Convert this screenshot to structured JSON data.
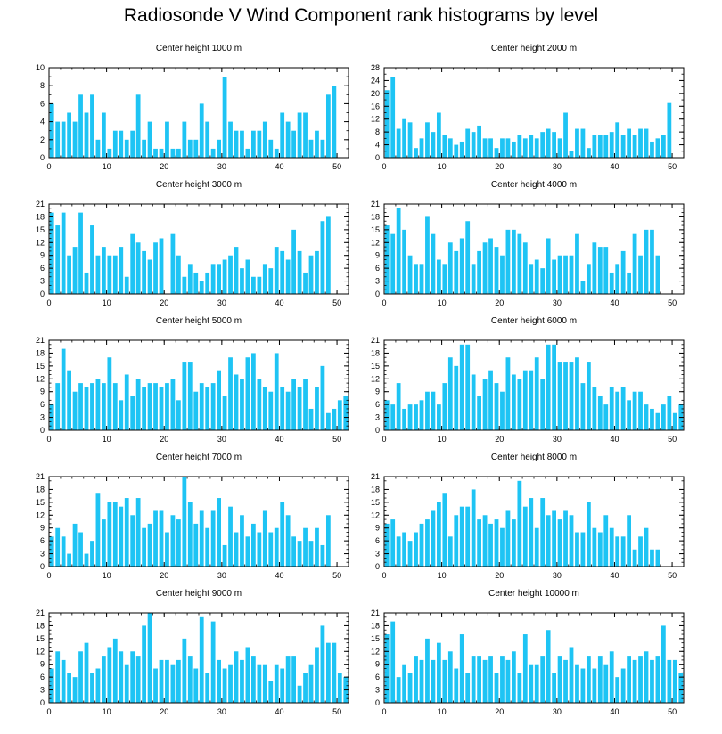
{
  "title": "Radiosonde V Wind Component rank histograms by level",
  "bar_color": "#1ec4f4",
  "chart_data": [
    {
      "type": "bar",
      "title": "Center height 1000 m",
      "xlim": [
        0,
        52
      ],
      "ylim": [
        0,
        10
      ],
      "yticks": [
        0,
        2,
        4,
        6,
        8,
        10
      ],
      "xticks": [
        0,
        10,
        20,
        30,
        40,
        50
      ],
      "values": [
        6,
        4,
        4,
        5,
        4,
        7,
        5,
        7,
        2,
        5,
        1,
        3,
        3,
        2,
        3,
        7,
        2,
        4,
        1,
        1,
        4,
        1,
        1,
        4,
        2,
        2,
        6,
        4,
        1,
        2,
        9,
        4,
        3,
        3,
        1,
        3,
        3,
        4,
        2,
        1,
        5,
        4,
        3,
        5,
        5,
        2,
        3,
        2,
        7,
        8
      ]
    },
    {
      "type": "bar",
      "title": "Center height 2000 m",
      "xlim": [
        0,
        52
      ],
      "ylim": [
        0,
        28
      ],
      "yticks": [
        0,
        4,
        8,
        12,
        16,
        20,
        24,
        28
      ],
      "xticks": [
        0,
        10,
        20,
        30,
        40,
        50
      ],
      "values": [
        21,
        25,
        9,
        12,
        11,
        3,
        6,
        11,
        8,
        14,
        7,
        6,
        4,
        5,
        9,
        8,
        10,
        6,
        6,
        3,
        6,
        6,
        5,
        7,
        6,
        7,
        6,
        8,
        9,
        8,
        6,
        14,
        2,
        9,
        9,
        3,
        7,
        7,
        7,
        8,
        11,
        7,
        9,
        7,
        9,
        9,
        5,
        6,
        7,
        17
      ]
    },
    {
      "type": "bar",
      "title": "Center height 3000 m",
      "xlim": [
        0,
        52
      ],
      "ylim": [
        0,
        21
      ],
      "yticks": [
        0,
        3,
        6,
        9,
        12,
        15,
        18,
        21
      ],
      "xticks": [
        0,
        10,
        20,
        30,
        40,
        50
      ],
      "values": [
        19,
        16,
        19,
        9,
        11,
        19,
        5,
        16,
        9,
        11,
        9,
        9,
        11,
        4,
        14,
        12,
        10,
        8,
        12,
        13,
        0,
        14,
        9,
        4,
        7,
        5,
        3,
        5,
        7,
        7,
        8,
        9,
        11,
        6,
        8,
        4,
        4,
        7,
        6,
        11,
        10,
        8,
        15,
        10,
        5,
        9,
        10,
        17,
        18
      ]
    },
    {
      "type": "bar",
      "title": "Center height 4000 m",
      "xlim": [
        0,
        52
      ],
      "ylim": [
        0,
        21
      ],
      "yticks": [
        0,
        3,
        6,
        9,
        12,
        15,
        18,
        21
      ],
      "xticks": [
        0,
        10,
        20,
        30,
        40,
        50
      ],
      "values": [
        16,
        14,
        20,
        15,
        9,
        7,
        7,
        18,
        14,
        8,
        7,
        12,
        10,
        13,
        17,
        7,
        10,
        12,
        13,
        11,
        9,
        15,
        15,
        14,
        12,
        7,
        8,
        6,
        13,
        8,
        9,
        9,
        9,
        14,
        3,
        7,
        12,
        11,
        11,
        5,
        7,
        10,
        5,
        14,
        9,
        15,
        15,
        9
      ]
    },
    {
      "type": "bar",
      "title": "Center height 5000 m",
      "xlim": [
        0,
        52
      ],
      "ylim": [
        0,
        21
      ],
      "yticks": [
        0,
        3,
        6,
        9,
        12,
        15,
        18,
        21
      ],
      "xticks": [
        0,
        10,
        20,
        30,
        40,
        50
      ],
      "values": [
        6,
        11,
        19,
        14,
        9,
        11,
        10,
        11,
        12,
        11,
        17,
        11,
        7,
        13,
        8,
        12,
        10,
        11,
        11,
        10,
        11,
        12,
        7,
        16,
        16,
        9,
        11,
        10,
        11,
        14,
        8,
        17,
        13,
        12,
        17,
        18,
        12,
        10,
        9,
        18,
        10,
        9,
        12,
        10,
        12,
        5,
        10,
        15,
        4,
        5,
        7,
        8
      ]
    },
    {
      "type": "bar",
      "title": "Center height 6000 m",
      "xlim": [
        0,
        52
      ],
      "ylim": [
        0,
        21
      ],
      "yticks": [
        0,
        3,
        6,
        9,
        12,
        15,
        18,
        21
      ],
      "xticks": [
        0,
        10,
        20,
        30,
        40,
        50
      ],
      "values": [
        7,
        6,
        11,
        5,
        6,
        6,
        7,
        9,
        9,
        6,
        11,
        17,
        15,
        20,
        20,
        13,
        8,
        12,
        14,
        11,
        9,
        17,
        13,
        12,
        14,
        14,
        17,
        12,
        20,
        20,
        16,
        16,
        16,
        17,
        11,
        16,
        10,
        8,
        6,
        10,
        9,
        10,
        7,
        9,
        9,
        6,
        5,
        4,
        6,
        8,
        4,
        6
      ]
    },
    {
      "type": "bar",
      "title": "Center height 7000 m",
      "xlim": [
        0,
        52
      ],
      "ylim": [
        0,
        21
      ],
      "yticks": [
        0,
        3,
        6,
        9,
        12,
        15,
        18,
        21
      ],
      "xticks": [
        0,
        10,
        20,
        30,
        40,
        50
      ],
      "values": [
        7,
        9,
        7,
        3,
        10,
        8,
        3,
        6,
        17,
        11,
        15,
        15,
        14,
        16,
        12,
        16,
        9,
        10,
        13,
        13,
        8,
        12,
        11,
        21,
        15,
        10,
        13,
        9,
        13,
        16,
        5,
        14,
        8,
        12,
        7,
        10,
        8,
        13,
        8,
        9,
        15,
        12,
        7,
        6,
        9,
        6,
        9,
        5,
        12
      ]
    },
    {
      "type": "bar",
      "title": "Center height 8000 m",
      "xlim": [
        0,
        52
      ],
      "ylim": [
        0,
        21
      ],
      "yticks": [
        0,
        3,
        6,
        9,
        12,
        15,
        18,
        21
      ],
      "xticks": [
        0,
        10,
        20,
        30,
        40,
        50
      ],
      "values": [
        10,
        11,
        7,
        8,
        6,
        8,
        10,
        11,
        13,
        15,
        17,
        7,
        12,
        14,
        14,
        18,
        11,
        12,
        10,
        11,
        9,
        13,
        11,
        20,
        14,
        16,
        9,
        16,
        12,
        13,
        11,
        13,
        12,
        8,
        8,
        15,
        9,
        8,
        12,
        9,
        7,
        7,
        12,
        4,
        7,
        9,
        4,
        4
      ]
    },
    {
      "type": "bar",
      "title": "Center height 9000 m",
      "xlim": [
        0,
        52
      ],
      "ylim": [
        0,
        21
      ],
      "yticks": [
        0,
        3,
        6,
        9,
        12,
        15,
        18,
        21
      ],
      "xticks": [
        0,
        10,
        20,
        30,
        40,
        50
      ],
      "values": [
        8,
        12,
        10,
        7,
        6,
        12,
        14,
        7,
        8,
        11,
        13,
        15,
        12,
        9,
        12,
        11,
        18,
        21,
        8,
        10,
        10,
        9,
        10,
        15,
        11,
        8,
        20,
        7,
        19,
        10,
        8,
        9,
        12,
        10,
        13,
        11,
        9,
        9,
        5,
        9,
        8,
        11,
        11,
        4,
        7,
        9,
        13,
        18,
        14,
        14,
        7,
        6
      ]
    },
    {
      "type": "bar",
      "title": "Center height 10000 m",
      "xlim": [
        0,
        52
      ],
      "ylim": [
        0,
        21
      ],
      "yticks": [
        0,
        3,
        6,
        9,
        12,
        15,
        18,
        21
      ],
      "xticks": [
        0,
        10,
        20,
        30,
        40,
        50
      ],
      "values": [
        16,
        19,
        6,
        9,
        7,
        11,
        10,
        15,
        10,
        14,
        10,
        12,
        8,
        16,
        7,
        11,
        11,
        10,
        11,
        7,
        11,
        10,
        12,
        7,
        16,
        9,
        9,
        11,
        17,
        7,
        11,
        10,
        13,
        9,
        8,
        11,
        8,
        11,
        9,
        12,
        6,
        8,
        11,
        10,
        11,
        12,
        10,
        11,
        18,
        10,
        10,
        7
      ]
    }
  ]
}
